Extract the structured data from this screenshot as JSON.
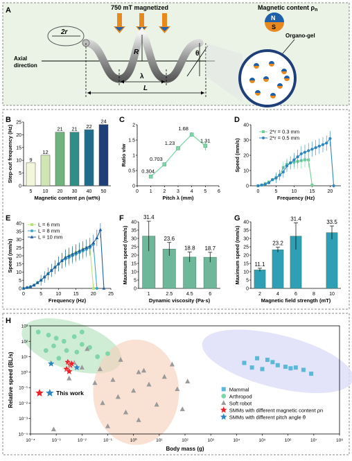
{
  "panelA": {
    "letter": "A",
    "magnetized_label": "750 mT magnetized",
    "content_label": "Magnetic content ρ",
    "content_sub": "n",
    "organo_label": "Organo-gel",
    "r_label": "2r",
    "R_label": "R",
    "theta_label": "θ",
    "lambda_label": "λ",
    "L_label": "L",
    "axial_1": "Axial",
    "axial_2": "direction",
    "N_label": "N",
    "S_label": "S",
    "colors": {
      "arrow": "#e8891f",
      "arrow_head": "#2563a8",
      "pole_n": "#1d5fa8",
      "pole_s": "#e8891f",
      "bg": "#eaf3e6"
    }
  },
  "chart_data": [
    {
      "id": "B",
      "type": "bar",
      "letter": "B",
      "categories": [
        "5",
        "10",
        "20",
        "30",
        "40",
        "50"
      ],
      "values": [
        9,
        12,
        21,
        21,
        22,
        24
      ],
      "colors": [
        "#f1f7d8",
        "#cfe6b3",
        "#6fb47c",
        "#2f8f86",
        "#1f6f8c",
        "#1e3f7a"
      ],
      "xlabel": "Magnetic content ρn (wt%)",
      "ylabel": "Step-out frequency (Hz)",
      "ylim": [
        0,
        25
      ],
      "yticks": [
        0,
        5,
        10,
        15,
        20,
        25
      ]
    },
    {
      "id": "C",
      "type": "line",
      "letter": "C",
      "x": [
        1,
        2,
        3,
        4,
        5
      ],
      "values": [
        0.304,
        0.703,
        1.23,
        1.68,
        1.31
      ],
      "errors": [
        0.02,
        0.04,
        0.05,
        0.07,
        0.15
      ],
      "labels": [
        "0.304",
        "0.703",
        "1.23",
        "1.68",
        "1.31"
      ],
      "xlabel": "Pitch λ (mm)",
      "ylabel": "Ratio v/w",
      "xlim": [
        0,
        6
      ],
      "ylim": [
        0,
        2.0
      ],
      "xticks": [
        0,
        1,
        2,
        3,
        4,
        5,
        6
      ],
      "yticks": [
        0,
        0.5,
        1.0,
        1.5,
        2.0
      ]
    },
    {
      "id": "D",
      "type": "line",
      "letter": "D",
      "xlabel": "Frequency (Hz)",
      "ylabel": "Speed (mm/s)",
      "xlim": [
        -2,
        23
      ],
      "ylim": [
        0,
        40
      ],
      "xticks": [
        0,
        5,
        10,
        15,
        20
      ],
      "yticks": [
        0,
        10,
        20,
        30,
        40
      ],
      "series": [
        {
          "name": "2*r = 0.3 mm",
          "color": "#6fcf97",
          "x": [
            0,
            1,
            2,
            3,
            4,
            5,
            6,
            7,
            8,
            9,
            10,
            11,
            12,
            13,
            14,
            15
          ],
          "values": [
            0,
            0.5,
            1.5,
            2.5,
            4,
            5.5,
            7,
            12,
            14,
            15,
            15.5,
            16,
            16.5,
            17,
            17,
            0.5
          ]
        },
        {
          "name": "2*r = 0.5 mm",
          "color": "#2e86c1",
          "x": [
            0,
            1,
            2,
            3,
            4,
            5,
            6,
            7,
            8,
            9,
            10,
            11,
            12,
            13,
            14,
            15,
            16,
            17,
            18,
            19,
            20,
            21
          ],
          "values": [
            0,
            0.5,
            1,
            2,
            4,
            5,
            7,
            9,
            13,
            15,
            17,
            19,
            21,
            22,
            23,
            24,
            25,
            26,
            27,
            28,
            31,
            0
          ]
        }
      ]
    },
    {
      "id": "E",
      "type": "line",
      "letter": "E",
      "xlabel": "Frequency (Hz)",
      "ylabel": "Speed (mm/s)",
      "xlim": [
        0,
        25
      ],
      "ylim": [
        0,
        40
      ],
      "xticks": [
        0,
        5,
        10,
        15,
        20,
        25
      ],
      "yticks": [
        0,
        5,
        10,
        15,
        20,
        25,
        30,
        35,
        40
      ],
      "series": [
        {
          "name": "L = 6 mm",
          "color": "#b6e37a",
          "x": [
            0,
            1,
            2,
            3,
            4,
            5,
            6,
            7,
            8,
            9,
            10,
            11,
            12,
            13,
            14,
            15,
            16,
            17,
            18,
            19,
            20
          ],
          "values": [
            0,
            0.5,
            1,
            2,
            3.5,
            5,
            7,
            9,
            11,
            13,
            15,
            17,
            19,
            20,
            21,
            22,
            23,
            24,
            25,
            25.5,
            0
          ]
        },
        {
          "name": "L = 8 mm",
          "color": "#3aa6c9",
          "x": [
            0,
            1,
            2,
            3,
            4,
            5,
            6,
            7,
            8,
            9,
            10,
            11,
            12,
            13,
            14,
            15,
            16,
            17,
            18,
            19,
            20,
            21
          ],
          "values": [
            0,
            0.5,
            1,
            2,
            3.5,
            5,
            7,
            9,
            11,
            13,
            15,
            17,
            18,
            19,
            20,
            21,
            22,
            23,
            24,
            25,
            27,
            0
          ]
        },
        {
          "name": "L = 10 mm",
          "color": "#1f5fa0",
          "x": [
            0,
            1,
            2,
            3,
            4,
            5,
            6,
            7,
            8,
            9,
            10,
            11,
            12,
            13,
            14,
            15,
            16,
            17,
            18,
            19,
            20,
            21,
            22,
            23
          ],
          "values": [
            0,
            0.5,
            1,
            2,
            3.5,
            5,
            7,
            9,
            11,
            13,
            15,
            17,
            19,
            20,
            21,
            22,
            23,
            24,
            25,
            26,
            28,
            31,
            36,
            0
          ]
        }
      ]
    },
    {
      "id": "F",
      "type": "bar",
      "letter": "F",
      "categories": [
        "1",
        "2.5",
        "4.5",
        "6"
      ],
      "values": [
        31.4,
        23.6,
        18.8,
        18.7
      ],
      "errors": [
        9,
        4,
        3,
        3
      ],
      "labels": [
        "31.4",
        "23.6",
        "18.8",
        "18.7"
      ],
      "color": "#6fb79a",
      "xlabel": "Dynamic viscosity (Pa·s)",
      "ylabel": "Maximum speed (mm/s)",
      "ylim": [
        0,
        40
      ],
      "yticks": [
        0,
        5,
        10,
        15,
        20,
        25,
        30,
        35,
        40
      ]
    },
    {
      "id": "G",
      "type": "bar",
      "letter": "G",
      "categories": [
        "2",
        "4",
        "6",
        "8",
        "10"
      ],
      "values": [
        11.1,
        23.2,
        31.4,
        0,
        33.5
      ],
      "errors": [
        1,
        1.5,
        8,
        0,
        4
      ],
      "labels": [
        "11.1",
        "23.2",
        "31.4",
        "",
        "33.5"
      ],
      "color": "#2e9fb5",
      "xlabel": "Magnetic field strength (mT)",
      "ylabel": "Maximum speed (mm/s)",
      "ylim": [
        0,
        40
      ],
      "yticks": [
        0,
        5,
        10,
        15,
        20,
        25,
        30,
        35,
        40
      ]
    },
    {
      "id": "H",
      "type": "scatter",
      "letter": "H",
      "xlabel": "Body mass (g)",
      "ylabel": "Relative speed (BL/s)",
      "log_x": true,
      "log_y": true,
      "xlim_exp": [
        -4,
        8
      ],
      "ylim_exp": [
        -4,
        3
      ],
      "xtick_labels": [
        "10⁻⁴",
        "10⁻³",
        "10⁻²",
        "10⁻¹",
        "10⁰",
        "10¹",
        "10²",
        "10³",
        "10⁴",
        "10⁵",
        "10⁶",
        "10⁷",
        "10⁸"
      ],
      "ytick_labels": [
        "10⁻⁴",
        "10⁻³",
        "10⁻²",
        "10⁻¹",
        "10⁰",
        "10¹",
        "10²",
        "10³"
      ],
      "this_work_label": "This work",
      "series": [
        {
          "name": "Mammal",
          "marker": "square",
          "color": "#5bb8d8",
          "points": [
            [
              4.8,
              0.9
            ],
            [
              5.2,
              0.8
            ],
            [
              5.4,
              0.65
            ],
            [
              5.6,
              0.45
            ],
            [
              5.9,
              0.35
            ],
            [
              6.1,
              0.25
            ],
            [
              6.3,
              0.3
            ],
            [
              6.6,
              0.15
            ],
            [
              6.9,
              -0.1
            ],
            [
              4.3,
              0.6
            ],
            [
              4.6,
              0.3
            ],
            [
              5.0,
              0.2
            ]
          ]
        },
        {
          "name": "Arthropod",
          "marker": "circle",
          "color": "#7fd6a8",
          "points": [
            [
              -3.7,
              2.6
            ],
            [
              -3.3,
              2.4
            ],
            [
              -3.0,
              2.2
            ],
            [
              -2.7,
              2.0
            ],
            [
              -2.3,
              2.3
            ],
            [
              -2.0,
              1.8
            ],
            [
              -1.7,
              1.6
            ],
            [
              -3.1,
              1.7
            ],
            [
              -2.6,
              1.4
            ],
            [
              -2.2,
              1.3
            ],
            [
              -1.4,
              1.0
            ],
            [
              -1.0,
              1.2
            ],
            [
              -3.4,
              1.4
            ],
            [
              -2.0,
              2.6
            ],
            [
              -2.9,
              0.9
            ]
          ]
        },
        {
          "name": "Soft robot",
          "marker": "triangle",
          "color": "#9a9a9a",
          "points": [
            [
              -3.1,
              -3.7
            ],
            [
              -2.3,
              0.6
            ],
            [
              -2.0,
              0.3
            ],
            [
              -1.8,
              1.5
            ],
            [
              -1.5,
              -0.7
            ],
            [
              -1.3,
              0.2
            ],
            [
              -1.2,
              -2.0
            ],
            [
              -1.0,
              -3.5
            ],
            [
              -0.8,
              -0.5
            ],
            [
              -0.6,
              -1.6
            ],
            [
              -0.5,
              0.8
            ],
            [
              -0.3,
              -2.6
            ],
            [
              0.0,
              -1.2
            ],
            [
              0.2,
              -3.1
            ],
            [
              0.4,
              0.1
            ],
            [
              0.6,
              -0.8
            ],
            [
              0.9,
              -2.1
            ],
            [
              1.2,
              -0.3
            ],
            [
              1.5,
              0.5
            ],
            [
              1.7,
              -1.1
            ],
            [
              1.9,
              -2.4
            ],
            [
              2.1,
              -0.6
            ],
            [
              0.2,
              0.0
            ],
            [
              -2.5,
              -0.4
            ]
          ]
        },
        {
          "name": "SMMs with different magnetic content ρn",
          "marker": "star",
          "color": "#e8242b",
          "points": [
            [
              -2.55,
              0.65
            ],
            [
              -2.45,
              0.45
            ],
            [
              -2.6,
              0.2
            ],
            [
              -2.5,
              0.05
            ],
            [
              -2.4,
              0.55
            ]
          ]
        },
        {
          "name": "SMMs with different pitch angle θ",
          "marker": "star",
          "color": "#2e86c1",
          "points": [
            [
              -3.2,
              0.55
            ],
            [
              -2.2,
              0.3
            ]
          ]
        }
      ]
    }
  ]
}
